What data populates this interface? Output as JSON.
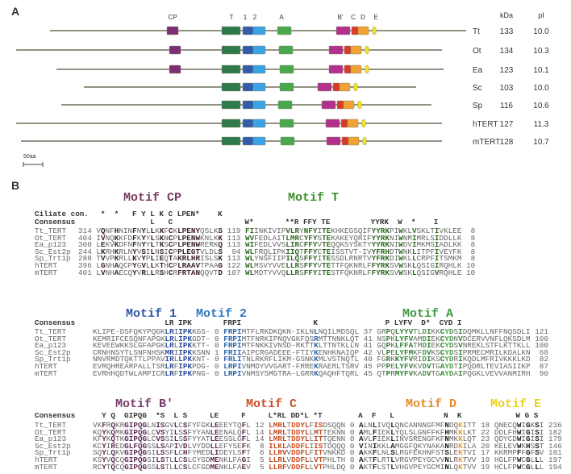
{
  "panel_a": {
    "label": "A",
    "headers": {
      "kda": "kDa",
      "pi": "pI"
    },
    "motif_labels": [
      "CP",
      "T",
      "1",
      "2",
      "A",
      "B'",
      "C",
      "D",
      "E"
    ],
    "species": [
      {
        "name": "Tt",
        "kda": "133",
        "pi": "10.0"
      },
      {
        "name": "Ot",
        "kda": "134",
        "pi": "10.3"
      },
      {
        "name": "Ea",
        "kda": "123",
        "pi": "10.1"
      },
      {
        "name": "Sc",
        "kda": "103",
        "pi": "10.0"
      },
      {
        "name": "Sp",
        "kda": "116",
        "pi": "10.6"
      },
      {
        "name": "hTERT",
        "kda": "127",
        "pi": "11.3"
      },
      {
        "name": "mTERT",
        "kda": "128",
        "pi": "10.7"
      }
    ],
    "scale_label": "50aa",
    "colors": {
      "line": "#6e6e5c",
      "CP": "#7b2f72",
      "T": "#2f7a4a",
      "1": "#2f5cab",
      "2": "#3aa3e3",
      "A": "#4aa84c",
      "B'": "#b3308c",
      "C": "#d83a28",
      "D": "#f0a232",
      "E": "#f3e024"
    }
  },
  "panel_b": {
    "label": "B",
    "blocks": [
      {
        "motifs": [
          {
            "title": "Motif CP",
            "color": "#7a3a60"
          },
          {
            "title": "Motif T",
            "color": "#3f8f2f"
          }
        ],
        "ciliate": {
          "label": "Ciliate con.",
          "text": "     *  *   F Y L K C LPEN*    K"
        },
        "consensus": {
          "label": "Consensus",
          "text": "                L   C                W*       **R FFY TE         YYRK  W  *    I"
        },
        "rows": [
          {
            "name": "Tt_TERT",
            "text": "314 VQNFHNINFNYLLKKFCKLPENYQSLKS 119 FIINKIVIPVLRYNFYITEKHKEGSQIFYYRKPIWKLVSKLTIVKLEE  8"
          },
          {
            "name": "Ot_TERT",
            "text": "404 IVNQKKFDFKYYLSKNCPLPENWKNLKK 113 WVFEDLAITLMRCYFYSTEKAKEYQRIFYYRKNIWNMIMRLSIDDLLK  8"
          },
          {
            "name": "Ea_p123",
            "text": "300 LEKVKDFNFNYYLTKSCPLPENWRERKQ 113 WIFEDLVVSLIRCFFYVTEQQKSYSKTYYYRKNIWDVIMKMSIADLKK  8"
          },
          {
            "name": "Sc_Est2p",
            "text": "244 LKRHKRLNYVSILNSICPPLEGTVLDLS  94 WLFRQLIPKIIQTFFYCTEISSTVT-IVYFRHDTWNKLITPFIVEYFK  8"
          },
          {
            "name": "Sp_Trt1p",
            "text": "288 TVVPKRLLKVYPLIEQTAKRLHRISLSK 113 WLYNSFIIPILQSFFYITESSDLRNRTVYFRKDIWKLLCRPFITSMKM  8"
          },
          {
            "name": "hTERT",
            "text": "396 LGNHAQCPYGVLLKTHCPLRAAVTPAAG 122 WLMSVYVVELLRSFFYVTETTFQKNRLFFYRKSVWSKLQSIGIRQHLK 10"
          },
          {
            "name": "mTERT",
            "text": "401 LVNHAECQYVRLLRSHCRFRTANQQVTD 107 WLMDTYVVQLLRSFFYITESTFQKNRLFFYRKSVWSKLQSIGVRQHLE 10"
          }
        ]
      },
      {
        "motifs": [
          {
            "title": "Motif 1",
            "color": "#2f5aa6"
          },
          {
            "title": "Motif 2",
            "color": "#2f7cc2"
          },
          {
            "title": "Motif A",
            "color": "#3f9a3f"
          }
        ],
        "consensus": {
          "label": "Consensus",
          "text": "                LR IPK       FRPI                K               P LYFV  D*  CYD I"
        },
        "rows": [
          {
            "name": "Tt_TERT",
            "text": "KLIPE-DSFQKYPQGKLRIIPKKGS- 0 FRPIMTFLRKDKQKN-IKLNLNQILMDSQL 37 GRPQLYYVTLDIKKCYDSIDQMKLLNFFNQSDLI 121"
          },
          {
            "name": "Ot_TERT",
            "text": "KEMRIFCESQNFAPGKLRLIPKGDT- 0 FRPIMTFNRKIPNQVGKFQSRMTTNNKLQT 41 NSPKLYFVAMDIEKCYDNVDCERVVNFLQKSDLM 100"
          },
          {
            "name": "Ea_p123",
            "text": "KEVEEWKKSLGFAPGKLRLIPKKTT- 0 FRPIMTFNKKIVNSD-RKTTKLTTNTKLLN 41 GQPKLFFATMDIEKCYDSVNREKLSTFLKTTKLL 100"
          },
          {
            "name": "Sc_Est2p",
            "text": "CRNHNSYTLSNFNHSKMRIIPKKSNN 1 FRIIAIPCRGADEEE-FTIYKENHKNAIQP 42 VLPELYFMKFDVKSCYDSIPRMECMRILKDALKN  68"
          },
          {
            "name": "Sp_Trt1p",
            "text": "NNVRMDTQKTTLPPAVIRLLPKKNT- 0 FRLITNLRKRFLIKM-GSNKKMLVSTNQTL 40 FGRKKYFVRIDIKSCYDRIKQDLMFRIVKKKLKD  82"
          },
          {
            "name": "hTERT",
            "text": "EVRQHREARPALLTSRLRFIPKPDG- 0 LRPIVNMDYVVGART-FRREKRAERLTSRV 45 PPPELYFVKVDVTGAYDTIPQDRLTEVIASIIKP  87"
          },
          {
            "name": "mTERT",
            "text": "EVRHHQDTWLAMPICRLRFIPKPNG- 0 LRPIVNMSYSMGTRA-LGRRKQAQHFTQRL 45 QTPRMYFVKADVTGAYDAIPQGKLVEVVANMIRH  90"
          }
        ]
      },
      {
        "motifs": [
          {
            "title": "Motif B'",
            "color": "#7a3a6a"
          },
          {
            "title": "Motif C",
            "color": "#c8502a"
          },
          {
            "title": "Motif D",
            "color": "#e48c30"
          },
          {
            "title": "Motif E",
            "color": "#e9d21e"
          }
        ],
        "consensus": {
          "label": "Consensus",
          "text": "  Y Q  GIPQG  *S  L S     LE     F     L*RL DD*L *T        A  F   L           N  K            W G S"
        },
        "rows": [
          {
            "name": "Tt_TERT",
            "text": "VKFRQKRGIPQGLNISGVLCSFYFGKLEEEYTQFL 12 LMRLTDDYLFISDSQQN 0 ALNLIVQLQNCANNNGFMFNDQKITT 18 QNECQWIGKSI 236"
          },
          {
            "name": "Ot_TERT",
            "text": "KQYKQMKGIPQGLCVSYILSSFYYANLEENALQFL 14 LMRLTDDYLLMTTEKNN 0 AMLFIEKLYQLSLGNFFKFHMKKLKT 22 DDLFHWIGISI 182"
          },
          {
            "name": "Ea_p123",
            "text": "KFYKQTKGIPQGLCVSSILSSFYYATLEESSLGFL 14 LMRLTDDYLLITTQENN 0 AVLFIEKLINVSRENGFKFNMKKLQT 23 QDYCDWIGISI 179"
          },
          {
            "name": "Sc_Est2p",
            "text": "KCYIREDGLFQGSSLSAPIVDLVYDDLLEFYSEFK  8 ILKLADDFLIISTDQQQ 0 VINIKKLAMGGFQKYNAKANRDKILA 20 KELEVWKHSST 146"
          },
          {
            "name": "Sp_Trt1p",
            "text": "SQYLQKVGIPQGSILSSFLCHFYMEDLIDEYLSFT  6 LLRVVDDFLFITVNKKD 0 AKKFLNLSLRGFEKHNFSTSLEKTVI 17 KKRMPFFGFSV 181"
          },
          {
            "name": "hTERT",
            "text": "KSYVQCQGIPQGSILSTLLCSLCYGDMENKLFAGI  5 LLRLVDDFLLVTPHLTH 0 AKTFLRTLVRGVPEYGCVVNLRKTVV 19 HGLFPWCGLLL 197"
          },
          {
            "name": "mTERT",
            "text": "RCYTQCQGIPQGSSLSTLLCSLCFGDMENKLFAEV  5 LLRFVDDFLLVTPHLDQ 0 AKTFLSTLVHGVPEYGCMINLQKTVV 19 HCLFPWCGLLL 194"
          }
        ]
      }
    ]
  }
}
